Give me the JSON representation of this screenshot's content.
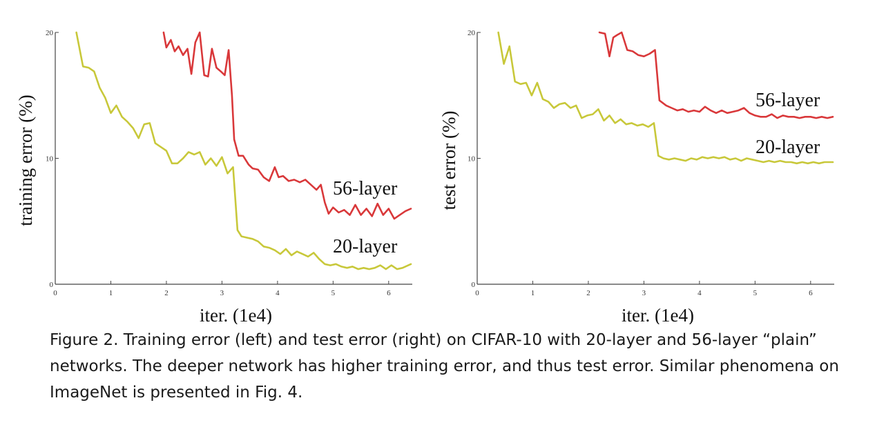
{
  "chart_data": [
    {
      "type": "line",
      "xlabel": "iter. (1e4)",
      "ylabel": "training error (%)",
      "xlim": [
        0,
        6.4
      ],
      "ylim": [
        0,
        20
      ],
      "xticks": [
        0,
        1,
        2,
        3,
        4,
        5,
        6
      ],
      "yticks": [
        0,
        10,
        20
      ],
      "grid": false,
      "legend": "inline-right",
      "series": [
        {
          "name": "56-layer",
          "color": "#d9383a",
          "x": [
            1.95,
            2.0,
            2.08,
            2.15,
            2.22,
            2.3,
            2.38,
            2.45,
            2.52,
            2.6,
            2.68,
            2.75,
            2.82,
            2.9,
            2.98,
            3.05,
            3.12,
            3.18,
            3.22,
            3.3,
            3.38,
            3.48,
            3.55,
            3.65,
            3.75,
            3.85,
            3.95,
            4.02,
            4.1,
            4.2,
            4.3,
            4.4,
            4.5,
            4.6,
            4.7,
            4.78,
            4.85,
            4.92,
            5.0,
            5.1,
            5.2,
            5.3,
            5.4,
            5.5,
            5.6,
            5.7,
            5.8,
            5.9,
            6.0,
            6.1,
            6.2,
            6.3,
            6.4
          ],
          "y": [
            20.0,
            18.8,
            19.4,
            18.5,
            18.9,
            18.2,
            18.7,
            16.7,
            19.2,
            20.0,
            16.6,
            16.5,
            18.7,
            17.2,
            16.9,
            16.6,
            18.6,
            15.0,
            11.5,
            10.2,
            10.2,
            9.5,
            9.2,
            9.1,
            8.5,
            8.2,
            9.3,
            8.5,
            8.6,
            8.2,
            8.3,
            8.1,
            8.3,
            7.9,
            7.5,
            7.9,
            6.5,
            5.6,
            6.1,
            5.7,
            5.9,
            5.5,
            6.3,
            5.5,
            6.0,
            5.4,
            6.4,
            5.5,
            6.0,
            5.2,
            5.5,
            5.8,
            6.0
          ]
        },
        {
          "name": "20-layer",
          "color": "#c8c83a",
          "x": [
            0.38,
            0.5,
            0.6,
            0.7,
            0.8,
            0.9,
            1.0,
            1.1,
            1.2,
            1.3,
            1.4,
            1.5,
            1.6,
            1.7,
            1.8,
            1.9,
            2.0,
            2.1,
            2.2,
            2.3,
            2.4,
            2.5,
            2.6,
            2.7,
            2.8,
            2.9,
            3.0,
            3.1,
            3.2,
            3.28,
            3.35,
            3.45,
            3.55,
            3.65,
            3.75,
            3.85,
            3.95,
            4.05,
            4.15,
            4.25,
            4.35,
            4.45,
            4.55,
            4.65,
            4.75,
            4.85,
            4.95,
            5.05,
            5.15,
            5.25,
            5.35,
            5.45,
            5.55,
            5.65,
            5.75,
            5.85,
            5.95,
            6.05,
            6.15,
            6.25,
            6.4
          ],
          "y": [
            20.0,
            17.3,
            17.2,
            16.9,
            15.6,
            14.8,
            13.6,
            14.2,
            13.3,
            12.9,
            12.4,
            11.6,
            12.7,
            12.8,
            11.2,
            10.9,
            10.6,
            9.6,
            9.6,
            10.0,
            10.5,
            10.3,
            10.5,
            9.5,
            10.0,
            9.4,
            10.1,
            8.8,
            9.3,
            4.3,
            3.8,
            3.7,
            3.6,
            3.4,
            3.0,
            2.9,
            2.7,
            2.4,
            2.8,
            2.3,
            2.6,
            2.4,
            2.2,
            2.5,
            2.0,
            1.6,
            1.5,
            1.6,
            1.4,
            1.3,
            1.4,
            1.2,
            1.3,
            1.2,
            1.3,
            1.5,
            1.2,
            1.5,
            1.2,
            1.3,
            1.6
          ]
        }
      ]
    },
    {
      "type": "line",
      "xlabel": "iter. (1e4)",
      "ylabel": "test error (%)",
      "xlim": [
        0,
        6.4
      ],
      "ylim": [
        0,
        20
      ],
      "xticks": [
        0,
        1,
        2,
        3,
        4,
        5,
        6
      ],
      "yticks": [
        0,
        10,
        20
      ],
      "grid": false,
      "legend": "inline-right",
      "series": [
        {
          "name": "56-layer",
          "color": "#d9383a",
          "x": [
            2.2,
            2.3,
            2.38,
            2.45,
            2.52,
            2.6,
            2.7,
            2.8,
            2.9,
            3.0,
            3.1,
            3.2,
            3.28,
            3.4,
            3.5,
            3.6,
            3.7,
            3.8,
            3.9,
            4.0,
            4.1,
            4.2,
            4.3,
            4.4,
            4.5,
            4.6,
            4.7,
            4.8,
            4.9,
            5.0,
            5.1,
            5.2,
            5.3,
            5.4,
            5.5,
            5.6,
            5.7,
            5.8,
            5.9,
            6.0,
            6.1,
            6.2,
            6.3,
            6.4
          ],
          "y": [
            20.0,
            19.9,
            18.1,
            19.6,
            19.8,
            20.0,
            18.6,
            18.5,
            18.2,
            18.1,
            18.3,
            18.6,
            14.6,
            14.2,
            14.0,
            13.8,
            13.9,
            13.7,
            13.8,
            13.7,
            14.1,
            13.8,
            13.6,
            13.8,
            13.6,
            13.7,
            13.8,
            14.0,
            13.6,
            13.4,
            13.3,
            13.3,
            13.5,
            13.2,
            13.4,
            13.3,
            13.3,
            13.2,
            13.3,
            13.3,
            13.2,
            13.3,
            13.2,
            13.3
          ]
        },
        {
          "name": "20-layer",
          "color": "#c8c83a",
          "x": [
            0.38,
            0.48,
            0.58,
            0.68,
            0.78,
            0.88,
            0.98,
            1.08,
            1.18,
            1.28,
            1.38,
            1.48,
            1.58,
            1.68,
            1.78,
            1.88,
            1.98,
            2.08,
            2.18,
            2.28,
            2.38,
            2.48,
            2.58,
            2.68,
            2.78,
            2.88,
            2.98,
            3.08,
            3.18,
            3.26,
            3.35,
            3.45,
            3.55,
            3.65,
            3.75,
            3.85,
            3.95,
            4.05,
            4.15,
            4.25,
            4.35,
            4.45,
            4.55,
            4.65,
            4.75,
            4.85,
            4.95,
            5.05,
            5.15,
            5.25,
            5.35,
            5.45,
            5.55,
            5.65,
            5.75,
            5.85,
            5.95,
            6.05,
            6.15,
            6.25,
            6.4
          ],
          "y": [
            20.0,
            17.5,
            18.9,
            16.1,
            15.9,
            16.0,
            15.0,
            16.0,
            14.7,
            14.5,
            14.0,
            14.3,
            14.4,
            14.0,
            14.2,
            13.2,
            13.4,
            13.5,
            13.9,
            13.0,
            13.4,
            12.8,
            13.1,
            12.7,
            12.8,
            12.6,
            12.7,
            12.5,
            12.8,
            10.2,
            10.0,
            9.9,
            10.0,
            9.9,
            9.8,
            10.0,
            9.9,
            10.1,
            10.0,
            10.1,
            10.0,
            10.1,
            9.9,
            10.0,
            9.8,
            10.0,
            9.9,
            9.8,
            9.7,
            9.8,
            9.7,
            9.8,
            9.7,
            9.7,
            9.6,
            9.7,
            9.6,
            9.7,
            9.6,
            9.7,
            9.7
          ]
        }
      ]
    }
  ],
  "caption": "Figure 2. Training error (left) and test error (right) on CIFAR-10 with 20-layer and 56-layer “plain” networks. The deeper network has higher training error, and thus test error. Similar phenomena on ImageNet is presented in Fig. 4."
}
